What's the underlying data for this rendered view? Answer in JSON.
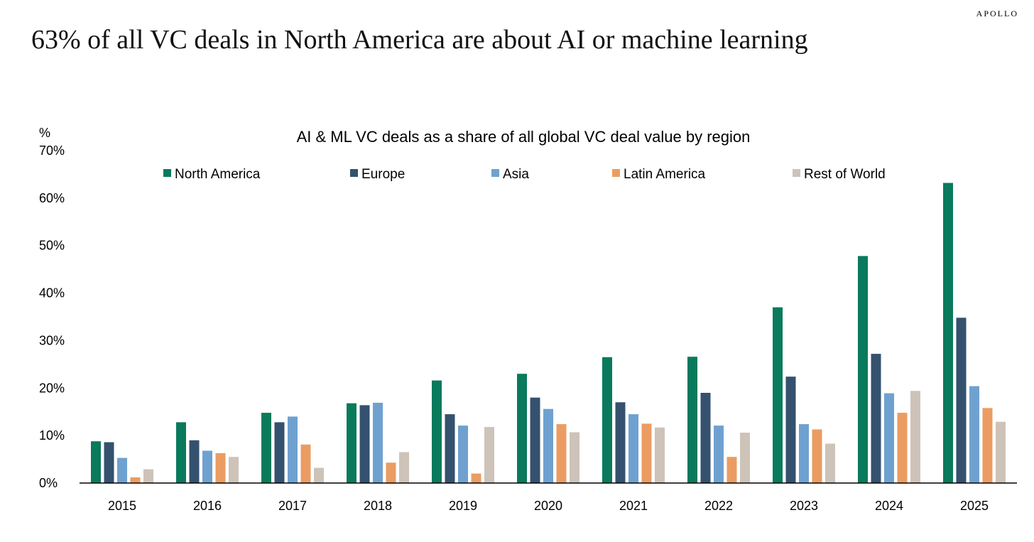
{
  "brand": "APOLLO",
  "headline": "63% of all VC deals in North America are about AI or machine learning",
  "chart_data": {
    "type": "bar",
    "title": "AI & ML VC deals as a share of all global VC deal value by region",
    "ylabel": "%",
    "xlabel": "",
    "ylim": [
      0,
      70
    ],
    "yticks": [
      "0%",
      "10%",
      "20%",
      "30%",
      "40%",
      "50%",
      "60%",
      "70%"
    ],
    "grid": false,
    "legend_position": "top",
    "categories": [
      "2015",
      "2016",
      "2017",
      "2018",
      "2019",
      "2020",
      "2021",
      "2022",
      "2023",
      "2024",
      "2025"
    ],
    "series": [
      {
        "name": "North America",
        "color": "#0a7a5c",
        "values": [
          8.8,
          12.8,
          14.8,
          16.8,
          21.6,
          23.0,
          26.5,
          26.6,
          37.0,
          47.8,
          63.2
        ]
      },
      {
        "name": "Europe",
        "color": "#34526f",
        "values": [
          8.6,
          9.0,
          12.8,
          16.4,
          14.5,
          18.0,
          17.0,
          19.0,
          22.4,
          27.2,
          34.8
        ]
      },
      {
        "name": "Asia",
        "color": "#6fa1d0",
        "values": [
          5.3,
          6.8,
          14.0,
          16.9,
          12.1,
          15.6,
          14.5,
          12.1,
          12.4,
          18.9,
          20.4
        ]
      },
      {
        "name": "Latin America",
        "color": "#eb9c62",
        "values": [
          1.2,
          6.3,
          8.1,
          4.3,
          2.0,
          12.4,
          12.5,
          5.5,
          11.3,
          14.8,
          15.8
        ]
      },
      {
        "name": "Rest of World",
        "color": "#cdc3b8",
        "values": [
          2.9,
          5.5,
          3.2,
          6.5,
          11.8,
          10.7,
          11.7,
          10.6,
          8.3,
          19.4,
          12.9
        ]
      }
    ]
  }
}
